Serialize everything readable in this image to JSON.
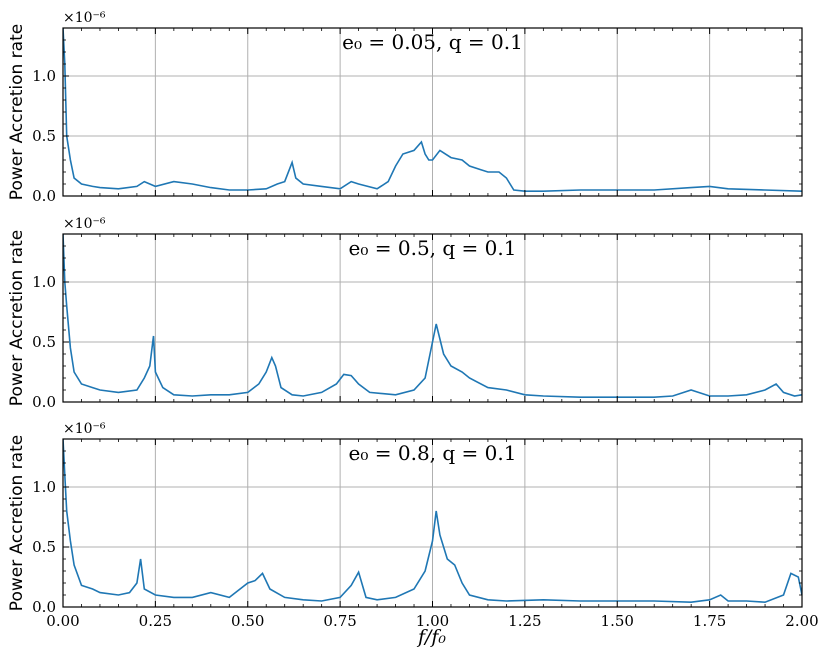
{
  "figure": {
    "xlabel": "f/f₀",
    "ylabel": "Power Accretion rate",
    "offset_text": "×10⁻⁶",
    "x_ticks": [
      "0.00",
      "0.25",
      "0.50",
      "0.75",
      "1.00",
      "1.25",
      "1.50",
      "1.75",
      "2.00"
    ],
    "y_ticks": [
      "0.0",
      "0.5",
      "1.0"
    ],
    "line_color": "#1f77b4",
    "grid_color": "#b0b0b0"
  },
  "chart_data": [
    {
      "type": "line",
      "title": "e₀ = 0.05, q = 0.1",
      "xlabel": "",
      "ylabel": "Power Accretion rate",
      "xlim": [
        0,
        2
      ],
      "ylim": [
        0,
        1.4
      ],
      "y_scale_factor": "1e-6",
      "grid": true,
      "series": [
        {
          "color": "#1f77b4",
          "x": [
            0,
            0.005,
            0.01,
            0.02,
            0.03,
            0.05,
            0.08,
            0.1,
            0.15,
            0.2,
            0.22,
            0.25,
            0.3,
            0.35,
            0.4,
            0.45,
            0.5,
            0.55,
            0.58,
            0.6,
            0.62,
            0.63,
            0.65,
            0.7,
            0.75,
            0.78,
            0.8,
            0.85,
            0.88,
            0.9,
            0.92,
            0.95,
            0.97,
            0.98,
            0.99,
            1.0,
            1.02,
            1.05,
            1.08,
            1.1,
            1.13,
            1.15,
            1.18,
            1.2,
            1.22,
            1.25,
            1.3,
            1.4,
            1.5,
            1.6,
            1.7,
            1.75,
            1.8,
            1.9,
            2.0
          ],
          "y": [
            1.4,
            1.1,
            0.5,
            0.3,
            0.15,
            0.1,
            0.08,
            0.07,
            0.06,
            0.08,
            0.12,
            0.08,
            0.12,
            0.1,
            0.07,
            0.05,
            0.05,
            0.06,
            0.1,
            0.12,
            0.28,
            0.15,
            0.1,
            0.08,
            0.06,
            0.12,
            0.1,
            0.06,
            0.12,
            0.25,
            0.35,
            0.38,
            0.45,
            0.35,
            0.3,
            0.3,
            0.38,
            0.32,
            0.3,
            0.25,
            0.22,
            0.2,
            0.2,
            0.15,
            0.05,
            0.04,
            0.04,
            0.05,
            0.05,
            0.05,
            0.07,
            0.08,
            0.06,
            0.05,
            0.04
          ]
        }
      ]
    },
    {
      "type": "line",
      "title": "e₀ = 0.5, q = 0.1",
      "xlabel": "",
      "ylabel": "Power Accretion rate",
      "xlim": [
        0,
        2
      ],
      "ylim": [
        0,
        1.4
      ],
      "y_scale_factor": "1e-6",
      "grid": true,
      "series": [
        {
          "color": "#1f77b4",
          "x": [
            0,
            0.005,
            0.01,
            0.02,
            0.03,
            0.05,
            0.08,
            0.1,
            0.15,
            0.2,
            0.22,
            0.235,
            0.245,
            0.25,
            0.27,
            0.3,
            0.35,
            0.4,
            0.45,
            0.5,
            0.53,
            0.55,
            0.565,
            0.575,
            0.59,
            0.62,
            0.65,
            0.7,
            0.74,
            0.76,
            0.78,
            0.8,
            0.83,
            0.9,
            0.95,
            0.98,
            1.0,
            1.01,
            1.03,
            1.05,
            1.08,
            1.1,
            1.15,
            1.2,
            1.25,
            1.3,
            1.4,
            1.5,
            1.6,
            1.65,
            1.7,
            1.75,
            1.8,
            1.85,
            1.9,
            1.93,
            1.95,
            1.98,
            2.0
          ],
          "y": [
            1.4,
            1.0,
            0.8,
            0.45,
            0.25,
            0.15,
            0.12,
            0.1,
            0.08,
            0.1,
            0.2,
            0.3,
            0.55,
            0.25,
            0.12,
            0.06,
            0.05,
            0.06,
            0.06,
            0.08,
            0.15,
            0.25,
            0.37,
            0.3,
            0.12,
            0.06,
            0.05,
            0.08,
            0.15,
            0.23,
            0.22,
            0.15,
            0.08,
            0.06,
            0.1,
            0.2,
            0.5,
            0.65,
            0.4,
            0.3,
            0.25,
            0.2,
            0.12,
            0.1,
            0.06,
            0.05,
            0.04,
            0.04,
            0.04,
            0.05,
            0.1,
            0.05,
            0.05,
            0.06,
            0.1,
            0.15,
            0.08,
            0.05,
            0.06
          ]
        }
      ]
    },
    {
      "type": "line",
      "title": "e₀ = 0.8, q = 0.1",
      "xlabel": "f/f₀",
      "ylabel": "Power Accretion rate",
      "xlim": [
        0,
        2
      ],
      "ylim": [
        0,
        1.4
      ],
      "y_scale_factor": "1e-6",
      "grid": true,
      "series": [
        {
          "color": "#1f77b4",
          "x": [
            0,
            0.005,
            0.01,
            0.02,
            0.03,
            0.05,
            0.08,
            0.1,
            0.15,
            0.18,
            0.2,
            0.21,
            0.22,
            0.25,
            0.3,
            0.35,
            0.4,
            0.45,
            0.5,
            0.52,
            0.54,
            0.56,
            0.6,
            0.65,
            0.7,
            0.75,
            0.78,
            0.8,
            0.82,
            0.85,
            0.9,
            0.95,
            0.98,
            1.0,
            1.01,
            1.02,
            1.04,
            1.06,
            1.08,
            1.1,
            1.15,
            1.2,
            1.3,
            1.4,
            1.5,
            1.6,
            1.7,
            1.75,
            1.78,
            1.8,
            1.85,
            1.9,
            1.95,
            1.97,
            1.99,
            2.0
          ],
          "y": [
            1.4,
            1.1,
            0.8,
            0.55,
            0.35,
            0.18,
            0.15,
            0.12,
            0.1,
            0.12,
            0.2,
            0.4,
            0.15,
            0.1,
            0.08,
            0.08,
            0.12,
            0.08,
            0.2,
            0.22,
            0.28,
            0.15,
            0.08,
            0.06,
            0.05,
            0.08,
            0.18,
            0.29,
            0.08,
            0.06,
            0.08,
            0.15,
            0.3,
            0.55,
            0.8,
            0.6,
            0.4,
            0.35,
            0.2,
            0.1,
            0.06,
            0.05,
            0.06,
            0.05,
            0.05,
            0.05,
            0.04,
            0.06,
            0.1,
            0.05,
            0.05,
            0.04,
            0.1,
            0.28,
            0.25,
            0.1
          ]
        }
      ]
    }
  ]
}
